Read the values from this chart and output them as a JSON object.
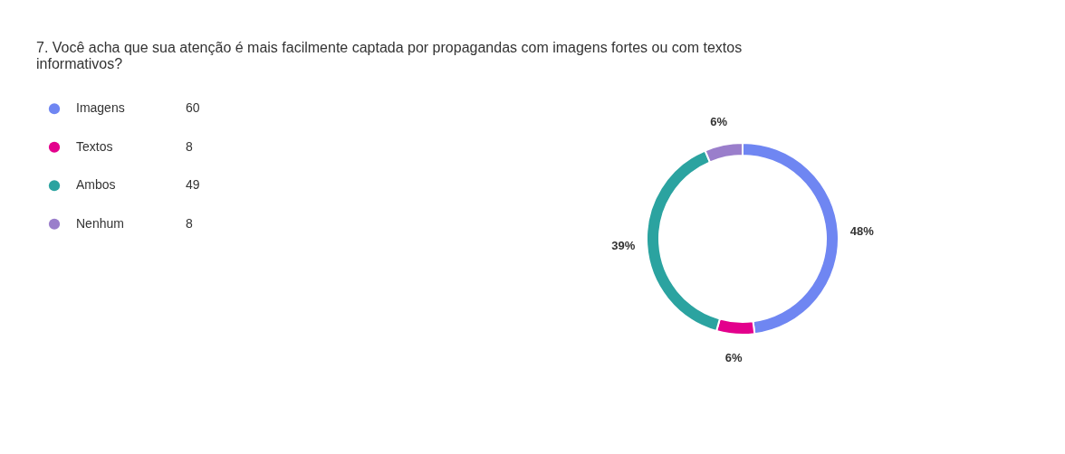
{
  "chart_data": {
    "type": "donut",
    "title": "7. Você acha que sua atenção é mais facilmente captada por propagandas com imagens fortes ou com textos informativos?",
    "categories": [
      "Imagens",
      "Textos",
      "Ambos",
      "Nenhum"
    ],
    "values": [
      48,
      6.4,
      39.2,
      6.4
    ],
    "annotations": [
      "60",
      "8",
      "49",
      "8"
    ],
    "value_labels": [
      "48%",
      "6%",
      "39%",
      "6%"
    ],
    "colors": [
      "#6f86f2",
      "#e3008c",
      "#2ba3a0",
      "#9a7ecb"
    ],
    "legend": "left"
  }
}
